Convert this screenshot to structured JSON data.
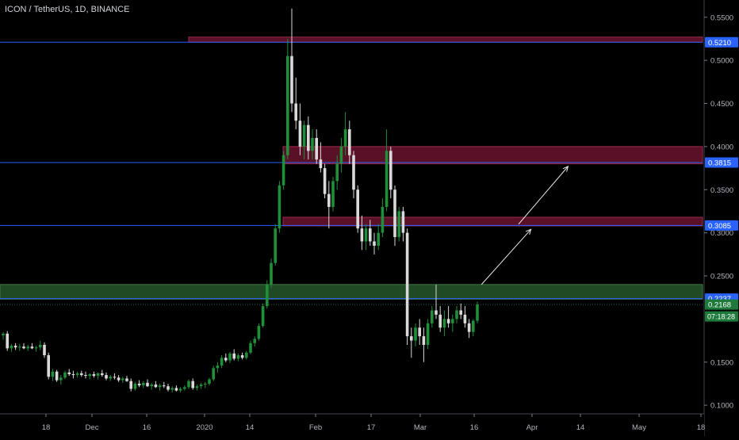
{
  "header": {
    "title": "ICON / TetherUS, 1D, BINANCE"
  },
  "chart_data": {
    "type": "candlestick",
    "symbol": "ICON / TetherUS",
    "interval": "1D",
    "exchange": "BINANCE",
    "ylim": [
      0.09,
      0.57
    ],
    "y_ticks": [
      "0.5500",
      "0.5000",
      "0.4500",
      "0.4000",
      "0.3500",
      "0.3000",
      "0.2500",
      "0.1500",
      "0.1000"
    ],
    "x_ticks": [
      "18",
      "Dec",
      "16",
      "2020",
      "14",
      "Feb",
      "17",
      "Mar",
      "16",
      "Apr",
      "14",
      "May",
      "18"
    ],
    "price_lines": [
      {
        "label": "0.5210",
        "value": 0.521,
        "color": "#2962ff"
      },
      {
        "label": "0.3815",
        "value": 0.3815,
        "color": "#2962ff"
      },
      {
        "label": "0.3085",
        "value": 0.3085,
        "color": "#2962ff"
      },
      {
        "label": "0.2237",
        "value": 0.2237,
        "color": "#2962ff"
      }
    ],
    "current_price": {
      "label": "0.2168",
      "value": 0.2168,
      "color": "#1e7a3a"
    },
    "countdown": "07:18:28",
    "zones": [
      {
        "top": 0.527,
        "bottom": 0.521,
        "color": "#5a1026"
      },
      {
        "top": 0.4,
        "bottom": 0.38,
        "color": "#5a1026"
      },
      {
        "top": 0.318,
        "bottom": 0.308,
        "color": "#5a1026"
      },
      {
        "top": 0.24,
        "bottom": 0.223,
        "color": "#1f4a24"
      }
    ],
    "candles": [
      [
        0.181,
        0.185,
        0.176,
        0.183
      ],
      [
        0.183,
        0.186,
        0.163,
        0.166
      ],
      [
        0.166,
        0.171,
        0.162,
        0.169
      ],
      [
        0.169,
        0.172,
        0.164,
        0.167
      ],
      [
        0.167,
        0.171,
        0.163,
        0.168
      ],
      [
        0.168,
        0.172,
        0.165,
        0.166
      ],
      [
        0.166,
        0.17,
        0.163,
        0.168
      ],
      [
        0.168,
        0.172,
        0.165,
        0.166
      ],
      [
        0.166,
        0.169,
        0.162,
        0.167
      ],
      [
        0.167,
        0.175,
        0.164,
        0.17
      ],
      [
        0.17,
        0.173,
        0.155,
        0.158
      ],
      [
        0.158,
        0.161,
        0.13,
        0.133
      ],
      [
        0.133,
        0.142,
        0.128,
        0.139
      ],
      [
        0.139,
        0.141,
        0.127,
        0.129
      ],
      [
        0.129,
        0.135,
        0.124,
        0.132
      ],
      [
        0.132,
        0.14,
        0.13,
        0.138
      ],
      [
        0.138,
        0.142,
        0.134,
        0.136
      ],
      [
        0.136,
        0.14,
        0.131,
        0.135
      ],
      [
        0.135,
        0.139,
        0.132,
        0.137
      ],
      [
        0.137,
        0.14,
        0.133,
        0.135
      ],
      [
        0.135,
        0.139,
        0.131,
        0.134
      ],
      [
        0.134,
        0.137,
        0.13,
        0.136
      ],
      [
        0.136,
        0.139,
        0.132,
        0.134
      ],
      [
        0.134,
        0.138,
        0.13,
        0.137
      ],
      [
        0.137,
        0.141,
        0.133,
        0.135
      ],
      [
        0.135,
        0.138,
        0.129,
        0.131
      ],
      [
        0.131,
        0.135,
        0.128,
        0.133
      ],
      [
        0.133,
        0.137,
        0.13,
        0.132
      ],
      [
        0.132,
        0.135,
        0.127,
        0.129
      ],
      [
        0.129,
        0.133,
        0.126,
        0.131
      ],
      [
        0.131,
        0.134,
        0.127,
        0.128
      ],
      [
        0.128,
        0.131,
        0.116,
        0.119
      ],
      [
        0.119,
        0.127,
        0.117,
        0.125
      ],
      [
        0.125,
        0.129,
        0.121,
        0.123
      ],
      [
        0.123,
        0.128,
        0.12,
        0.126
      ],
      [
        0.126,
        0.13,
        0.121,
        0.122
      ],
      [
        0.122,
        0.126,
        0.118,
        0.124
      ],
      [
        0.124,
        0.128,
        0.12,
        0.121
      ],
      [
        0.121,
        0.125,
        0.117,
        0.123
      ],
      [
        0.123,
        0.127,
        0.12,
        0.122
      ],
      [
        0.122,
        0.125,
        0.116,
        0.118
      ],
      [
        0.118,
        0.122,
        0.115,
        0.12
      ],
      [
        0.12,
        0.123,
        0.116,
        0.117
      ],
      [
        0.117,
        0.121,
        0.115,
        0.119
      ],
      [
        0.119,
        0.123,
        0.117,
        0.121
      ],
      [
        0.121,
        0.13,
        0.119,
        0.128
      ],
      [
        0.128,
        0.131,
        0.118,
        0.12
      ],
      [
        0.12,
        0.124,
        0.117,
        0.122
      ],
      [
        0.122,
        0.126,
        0.119,
        0.124
      ],
      [
        0.124,
        0.127,
        0.12,
        0.125
      ],
      [
        0.125,
        0.132,
        0.123,
        0.13
      ],
      [
        0.13,
        0.146,
        0.128,
        0.143
      ],
      [
        0.143,
        0.15,
        0.138,
        0.146
      ],
      [
        0.146,
        0.158,
        0.143,
        0.155
      ],
      [
        0.155,
        0.16,
        0.15,
        0.152
      ],
      [
        0.152,
        0.162,
        0.149,
        0.16
      ],
      [
        0.16,
        0.165,
        0.152,
        0.154
      ],
      [
        0.154,
        0.16,
        0.151,
        0.158
      ],
      [
        0.158,
        0.161,
        0.153,
        0.155
      ],
      [
        0.155,
        0.163,
        0.153,
        0.161
      ],
      [
        0.161,
        0.175,
        0.159,
        0.172
      ],
      [
        0.172,
        0.18,
        0.168,
        0.177
      ],
      [
        0.177,
        0.195,
        0.175,
        0.192
      ],
      [
        0.192,
        0.218,
        0.19,
        0.215
      ],
      [
        0.215,
        0.245,
        0.212,
        0.24
      ],
      [
        0.24,
        0.27,
        0.236,
        0.265
      ],
      [
        0.265,
        0.31,
        0.262,
        0.305
      ],
      [
        0.305,
        0.36,
        0.3,
        0.355
      ],
      [
        0.355,
        0.395,
        0.35,
        0.39
      ],
      [
        0.39,
        0.525,
        0.385,
        0.505
      ],
      [
        0.505,
        0.56,
        0.44,
        0.45
      ],
      [
        0.45,
        0.48,
        0.42,
        0.43
      ],
      [
        0.43,
        0.45,
        0.39,
        0.4
      ],
      [
        0.4,
        0.43,
        0.385,
        0.425
      ],
      [
        0.425,
        0.435,
        0.385,
        0.395
      ],
      [
        0.395,
        0.42,
        0.385,
        0.41
      ],
      [
        0.41,
        0.42,
        0.38,
        0.385
      ],
      [
        0.385,
        0.405,
        0.37,
        0.375
      ],
      [
        0.375,
        0.38,
        0.34,
        0.345
      ],
      [
        0.345,
        0.36,
        0.305,
        0.33
      ],
      [
        0.33,
        0.365,
        0.325,
        0.36
      ],
      [
        0.36,
        0.39,
        0.35,
        0.38
      ],
      [
        0.38,
        0.41,
        0.37,
        0.4
      ],
      [
        0.4,
        0.44,
        0.39,
        0.42
      ],
      [
        0.42,
        0.43,
        0.38,
        0.39
      ],
      [
        0.39,
        0.395,
        0.34,
        0.35
      ],
      [
        0.35,
        0.355,
        0.3,
        0.305
      ],
      [
        0.305,
        0.32,
        0.28,
        0.29
      ],
      [
        0.29,
        0.31,
        0.28,
        0.305
      ],
      [
        0.305,
        0.315,
        0.285,
        0.29
      ],
      [
        0.29,
        0.3,
        0.275,
        0.285
      ],
      [
        0.285,
        0.31,
        0.28,
        0.3
      ],
      [
        0.3,
        0.34,
        0.295,
        0.33
      ],
      [
        0.33,
        0.42,
        0.325,
        0.395
      ],
      [
        0.395,
        0.4,
        0.34,
        0.35
      ],
      [
        0.35,
        0.355,
        0.285,
        0.295
      ],
      [
        0.295,
        0.33,
        0.29,
        0.325
      ],
      [
        0.325,
        0.33,
        0.29,
        0.3
      ],
      [
        0.3,
        0.305,
        0.17,
        0.18
      ],
      [
        0.18,
        0.19,
        0.155,
        0.175
      ],
      [
        0.175,
        0.195,
        0.168,
        0.19
      ],
      [
        0.19,
        0.2,
        0.17,
        0.18
      ],
      [
        0.18,
        0.19,
        0.15,
        0.17
      ],
      [
        0.17,
        0.2,
        0.165,
        0.195
      ],
      [
        0.195,
        0.215,
        0.19,
        0.21
      ],
      [
        0.21,
        0.24,
        0.2,
        0.205
      ],
      [
        0.205,
        0.215,
        0.185,
        0.19
      ],
      [
        0.19,
        0.21,
        0.18,
        0.2
      ],
      [
        0.2,
        0.215,
        0.19,
        0.195
      ],
      [
        0.195,
        0.205,
        0.185,
        0.2
      ],
      [
        0.2,
        0.215,
        0.195,
        0.21
      ],
      [
        0.21,
        0.218,
        0.2,
        0.205
      ],
      [
        0.205,
        0.215,
        0.19,
        0.195
      ],
      [
        0.195,
        0.2,
        0.178,
        0.185
      ],
      [
        0.185,
        0.2,
        0.18,
        0.198
      ],
      [
        0.198,
        0.22,
        0.195,
        0.2168
      ]
    ],
    "annotations": [
      {
        "type": "arrow",
        "from": [
          "x_index",
          116,
          "y",
          0.24
        ],
        "to": [
          "x_index",
          128,
          "y",
          0.304
        ]
      },
      {
        "type": "arrow",
        "from": [
          "x_index",
          125,
          "y",
          0.31
        ],
        "to": [
          "x_index",
          137,
          "y",
          0.377
        ]
      }
    ]
  }
}
